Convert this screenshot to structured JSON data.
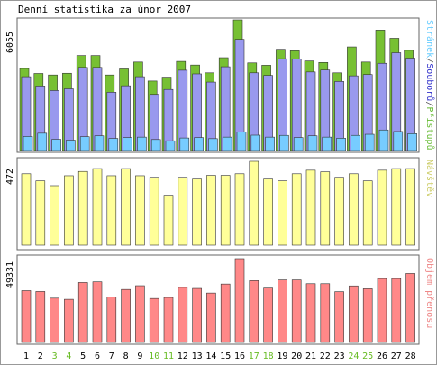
{
  "chart_data": [
    {
      "type": "bar",
      "title": "Denní statistika za únor 2007",
      "categories": [
        "1",
        "2",
        "3",
        "4",
        "5",
        "6",
        "7",
        "8",
        "9",
        "10",
        "11",
        "12",
        "13",
        "14",
        "15",
        "16",
        "17",
        "18",
        "19",
        "20",
        "21",
        "22",
        "23",
        "24",
        "25",
        "26",
        "27",
        "28"
      ],
      "weekend_days": [
        "3",
        "4",
        "10",
        "11",
        "17",
        "18",
        "24",
        "25"
      ],
      "ymax_label": "6055",
      "series_label_parts": [
        {
          "text": "Stránek",
          "color": "#66ccff"
        },
        {
          "text": "/",
          "color": "#555555"
        },
        {
          "text": "Souborů",
          "color": "#3333cc"
        },
        {
          "text": "/",
          "color": "#555555"
        },
        {
          "text": "Přístupů",
          "color": "#66bb33"
        }
      ],
      "series": [
        {
          "name": "Přístupů",
          "color": "#77c033",
          "values": [
            3800,
            3570,
            3500,
            3580,
            4400,
            4400,
            3500,
            3780,
            4100,
            3220,
            3400,
            4130,
            3960,
            3600,
            4300,
            6055,
            4060,
            3950,
            4690,
            4620,
            4150,
            4080,
            3600,
            4800,
            4100,
            5580,
            5200,
            4640
          ]
        },
        {
          "name": "Souborů",
          "color": "#9999ee",
          "values": [
            3420,
            2990,
            2780,
            2860,
            3850,
            3850,
            2700,
            3000,
            3420,
            2600,
            2830,
            3720,
            3550,
            3170,
            3880,
            5150,
            3600,
            3480,
            4250,
            4240,
            3640,
            3730,
            3200,
            3460,
            3520,
            4040,
            4530,
            4280
          ]
        },
        {
          "name": "Stránek",
          "color": "#77ccff",
          "values": [
            650,
            800,
            520,
            480,
            640,
            680,
            560,
            600,
            620,
            510,
            450,
            580,
            600,
            550,
            620,
            850,
            710,
            620,
            700,
            600,
            680,
            620,
            570,
            700,
            750,
            950,
            880,
            780
          ]
        }
      ]
    },
    {
      "type": "bar",
      "categories": [
        "1",
        "2",
        "3",
        "4",
        "5",
        "6",
        "7",
        "8",
        "9",
        "10",
        "11",
        "12",
        "13",
        "14",
        "15",
        "16",
        "17",
        "18",
        "19",
        "20",
        "21",
        "22",
        "23",
        "24",
        "25",
        "26",
        "27",
        "28"
      ],
      "ymax_label": "472",
      "series_label": "Návštěv",
      "series_label_color": "#cccc66",
      "series": [
        {
          "name": "Návštěv",
          "color": "#ffff99",
          "values": [
            402,
            362,
            335,
            391,
            415,
            431,
            391,
            431,
            391,
            382,
            281,
            382,
            372,
            393,
            393,
            402,
            472,
            372,
            362,
            402,
            422,
            413,
            382,
            402,
            362,
            422,
            431,
            431
          ]
        }
      ]
    },
    {
      "type": "bar",
      "categories": [
        "1",
        "2",
        "3",
        "4",
        "5",
        "6",
        "7",
        "8",
        "9",
        "10",
        "11",
        "12",
        "13",
        "14",
        "15",
        "16",
        "17",
        "18",
        "19",
        "20",
        "21",
        "22",
        "23",
        "24",
        "25",
        "26",
        "27",
        "28"
      ],
      "ymax_label": "49331",
      "series_label": "Objem přenosu",
      "series_label_color": "#ee8888",
      "series": [
        {
          "name": "Objem přenosu",
          "color": "#ff8888",
          "values": [
            30500,
            30000,
            26100,
            25400,
            35300,
            35700,
            26800,
            31200,
            33400,
            25900,
            26500,
            32400,
            31800,
            29100,
            34400,
            49331,
            36400,
            32000,
            36800,
            36800,
            34600,
            34600,
            29900,
            33300,
            31600,
            37600,
            37600,
            40600
          ]
        }
      ]
    }
  ]
}
